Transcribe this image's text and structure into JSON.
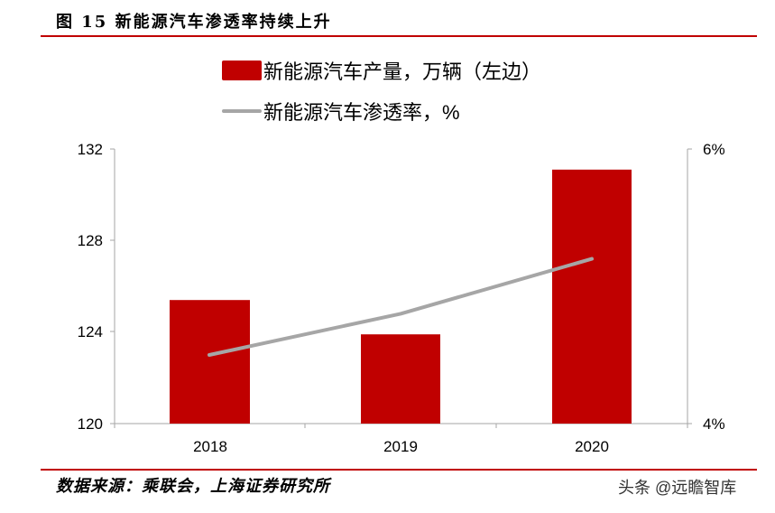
{
  "figure": {
    "title": "图 15 新能源汽车渗透率持续上升",
    "source": "数据来源：乘联会，上海证券研究所",
    "watermark": "头条 @远瞻智库"
  },
  "colors": {
    "bar": "#C00000",
    "line": "#A6A6A6",
    "rule": "#C00000",
    "axis": "#A6A6A6"
  },
  "legend": {
    "bar_label": "新能源汽车产量，万辆（左边）",
    "line_label": "新能源汽车渗透率，%"
  },
  "axes": {
    "left_ticks": [
      "132",
      "128",
      "124",
      "120"
    ],
    "right_ticks": [
      "6%",
      "4%"
    ],
    "x_ticks": [
      "2018",
      "2019",
      "2020"
    ]
  },
  "chart_data": {
    "type": "bar",
    "title": "新能源汽车渗透率持续上升",
    "categories": [
      "2018",
      "2019",
      "2020"
    ],
    "series": [
      {
        "name": "新能源汽车产量，万辆（左边）",
        "type": "bar",
        "axis": "left",
        "values": [
          125.4,
          123.9,
          131.1
        ]
      },
      {
        "name": "新能源汽车渗透率，%",
        "type": "line",
        "axis": "right",
        "values": [
          4.5,
          4.8,
          5.2
        ]
      }
    ],
    "xlabel": "",
    "ylabel": "",
    "ylim": [
      120,
      132
    ],
    "y_ticks": [
      120,
      124,
      128,
      132
    ],
    "y2lim": [
      4,
      6
    ],
    "y2_ticks": [
      "4%",
      "6%"
    ],
    "grid": false,
    "legend_position": "top"
  }
}
